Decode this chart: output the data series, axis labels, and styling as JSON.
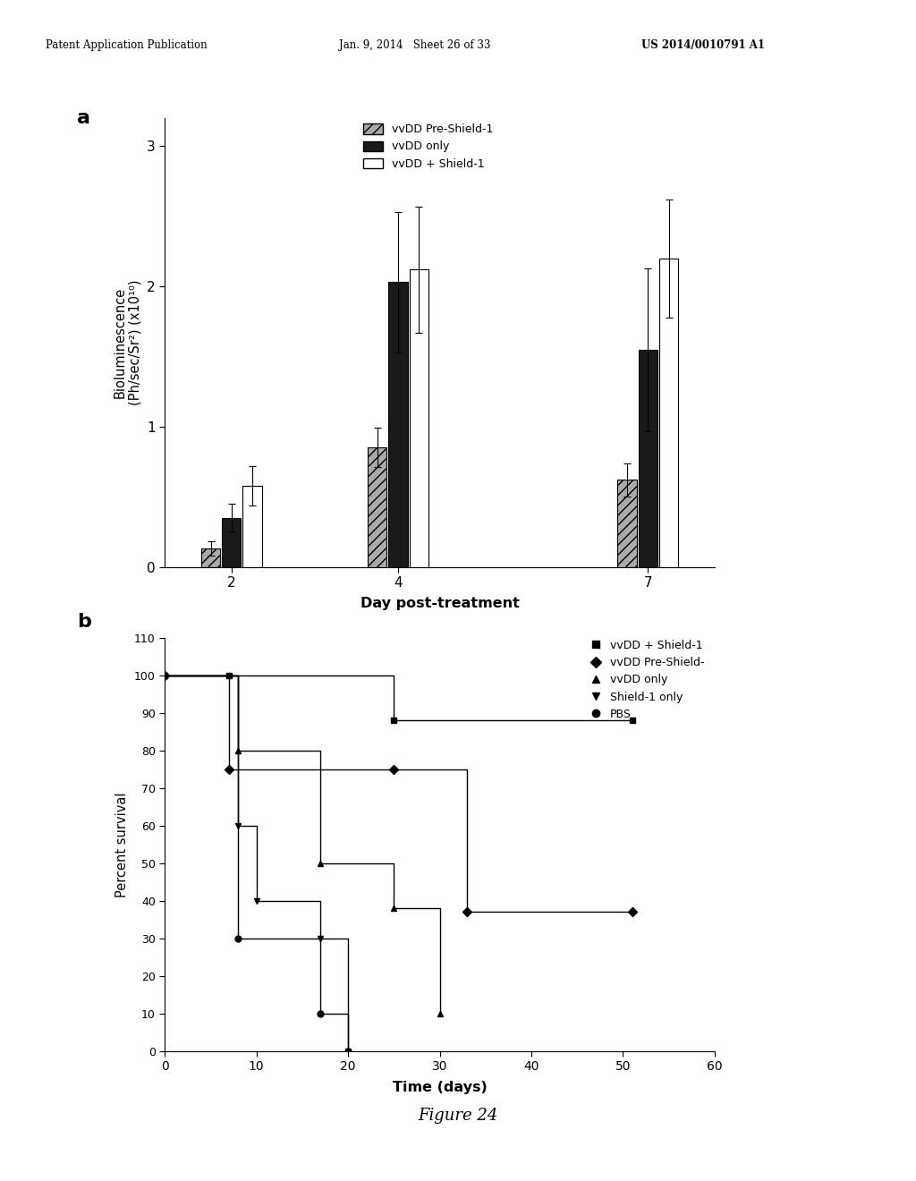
{
  "header_left": "Patent Application Publication",
  "header_mid": "Jan. 9, 2014   Sheet 26 of 33",
  "header_right": "US 2014/0010791 A1",
  "figure_label": "Figure 24",
  "panel_a": {
    "label": "a",
    "days": [
      2,
      4,
      7
    ],
    "bar_width": 0.25,
    "groups": [
      "vvDD Pre-Shield-1",
      "vvDD only",
      "vvDD + Shield-1"
    ],
    "colors": [
      "#aaaaaa",
      "#1a1a1a",
      "#ffffff"
    ],
    "hatch": [
      "///",
      "",
      ""
    ],
    "values": {
      "day2": [
        0.13,
        0.35,
        0.58
      ],
      "day4": [
        0.85,
        2.03,
        2.12
      ],
      "day7": [
        0.62,
        1.55,
        2.2
      ]
    },
    "errors": {
      "day2": [
        0.05,
        0.1,
        0.14
      ],
      "day4": [
        0.14,
        0.5,
        0.45
      ],
      "day7": [
        0.12,
        0.58,
        0.42
      ]
    },
    "ylabel": "Bioluminescence\n(Ph/sec/Sr²) (x10¹⁰)",
    "xlabel": "Day post-treatment",
    "ylim": [
      0,
      3.2
    ],
    "yticks": [
      0,
      1,
      2,
      3
    ]
  },
  "panel_b": {
    "label": "b",
    "ylabel": "Percent survival",
    "xlabel": "Time (days)",
    "xlim": [
      0,
      60
    ],
    "ylim": [
      0,
      110
    ],
    "yticks": [
      0,
      10,
      20,
      30,
      40,
      50,
      60,
      70,
      80,
      90,
      100,
      110
    ],
    "xticks": [
      0,
      10,
      20,
      30,
      40,
      50,
      60
    ],
    "series": {
      "vvDD + Shield-1": {
        "marker": "s",
        "x": [
          0,
          7,
          25,
          51
        ],
        "y": [
          100,
          100,
          88,
          88
        ]
      },
      "vvDD Pre-Shield-": {
        "marker": "D",
        "x": [
          0,
          7,
          25,
          33,
          51
        ],
        "y": [
          100,
          75,
          75,
          37,
          37
        ]
      },
      "vvDD only": {
        "marker": "^",
        "x": [
          0,
          8,
          17,
          25,
          30
        ],
        "y": [
          100,
          80,
          50,
          38,
          10
        ]
      },
      "Shield-1 only": {
        "marker": "v",
        "x": [
          0,
          8,
          10,
          17,
          20
        ],
        "y": [
          100,
          60,
          40,
          30,
          0
        ]
      },
      "PBS": {
        "marker": "o",
        "x": [
          0,
          8,
          17,
          20
        ],
        "y": [
          100,
          30,
          10,
          0
        ]
      }
    }
  }
}
